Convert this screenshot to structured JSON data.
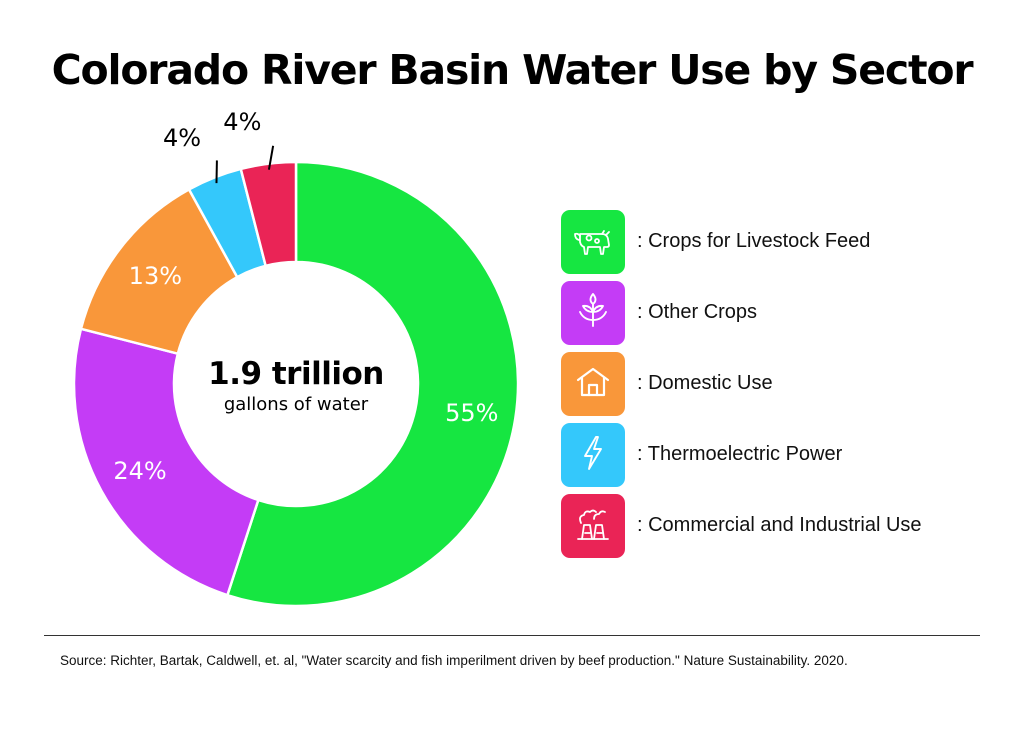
{
  "title": "Colorado River Basin Water Use by Sector",
  "source": "Source:  Richter, Bartak, Caldwell, et. al, \"Water scarcity and fish imperilment driven by beef production.\" Nature Sustainability. 2020.",
  "chart_data": {
    "type": "pie",
    "title": "Colorado River Basin Water Use by Sector",
    "center_label": {
      "value": "1.9 trillion",
      "caption": "gallons of water"
    },
    "categories": [
      "Crops for Livestock Feed",
      "Other Crops",
      "Domestic Use",
      "Thermoelectric Power",
      "Commercial and Industrial Use"
    ],
    "values": [
      55,
      24,
      13,
      4,
      4
    ],
    "labels": [
      "55%",
      "24%",
      "13%",
      "4%",
      "4%"
    ],
    "colors": [
      "#16e641",
      "#c43cf6",
      "#f9973a",
      "#34c8fb",
      "#ea2456"
    ],
    "legend": {
      "placement": "right",
      "items": [
        {
          "label": ": Crops for Livestock Feed",
          "icon": "cow-icon",
          "color": "#16e641"
        },
        {
          "label": ": Other Crops",
          "icon": "sprout-icon",
          "color": "#c43cf6"
        },
        {
          "label": ": Domestic Use",
          "icon": "house-icon",
          "color": "#f9973a"
        },
        {
          "label": ": Thermoelectric Power",
          "icon": "lightning-icon",
          "color": "#34c8fb"
        },
        {
          "label": ": Commercial and Industrial Use",
          "icon": "factory-icon",
          "color": "#ea2456"
        }
      ]
    }
  }
}
